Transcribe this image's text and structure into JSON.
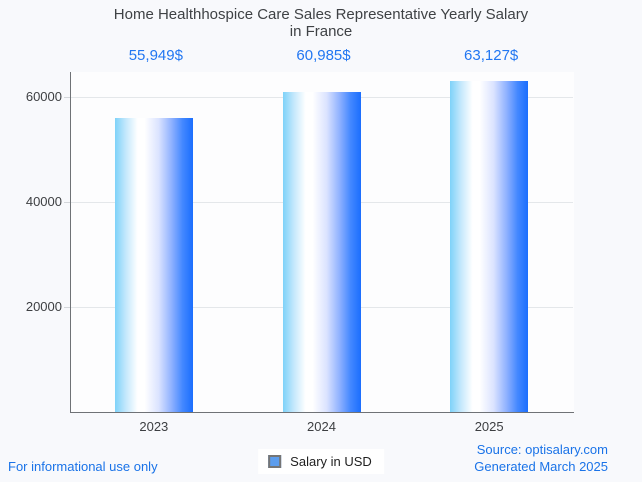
{
  "page": {
    "background": "#f8f9fc"
  },
  "title": {
    "line1": "Home Healthhospice Care Sales Representative Yearly Salary",
    "line2": "in France"
  },
  "chart_data": {
    "type": "bar",
    "title": "Home Healthhospice Care Sales Representative Yearly Salary in France",
    "categories": [
      "2023",
      "2024",
      "2025"
    ],
    "values": [
      55949,
      60985,
      63127
    ],
    "value_labels": [
      "55,949$",
      "60,985$",
      "63,127$"
    ],
    "series_name": "Salary in USD",
    "xlabel": "",
    "ylabel": "",
    "ylim": [
      0,
      64800
    ],
    "yticks": [
      20000,
      40000,
      60000
    ],
    "grid": true,
    "legend_position": "bottom",
    "bar_gradient_left": "#7ed2f9",
    "bar_gradient_mid": "#ffffff",
    "bar_gradient_right": "#1b6efe",
    "value_label_color": "#2277f2"
  },
  "legend": {
    "label": "Salary in USD",
    "marker_fill": "#5c9ded",
    "marker_border": "#757575"
  },
  "footer": {
    "disclaimer": "For informational use only",
    "source": "Source: optisalary.com",
    "generated": "Generated March 2025",
    "link_color": "#1a73e8"
  }
}
